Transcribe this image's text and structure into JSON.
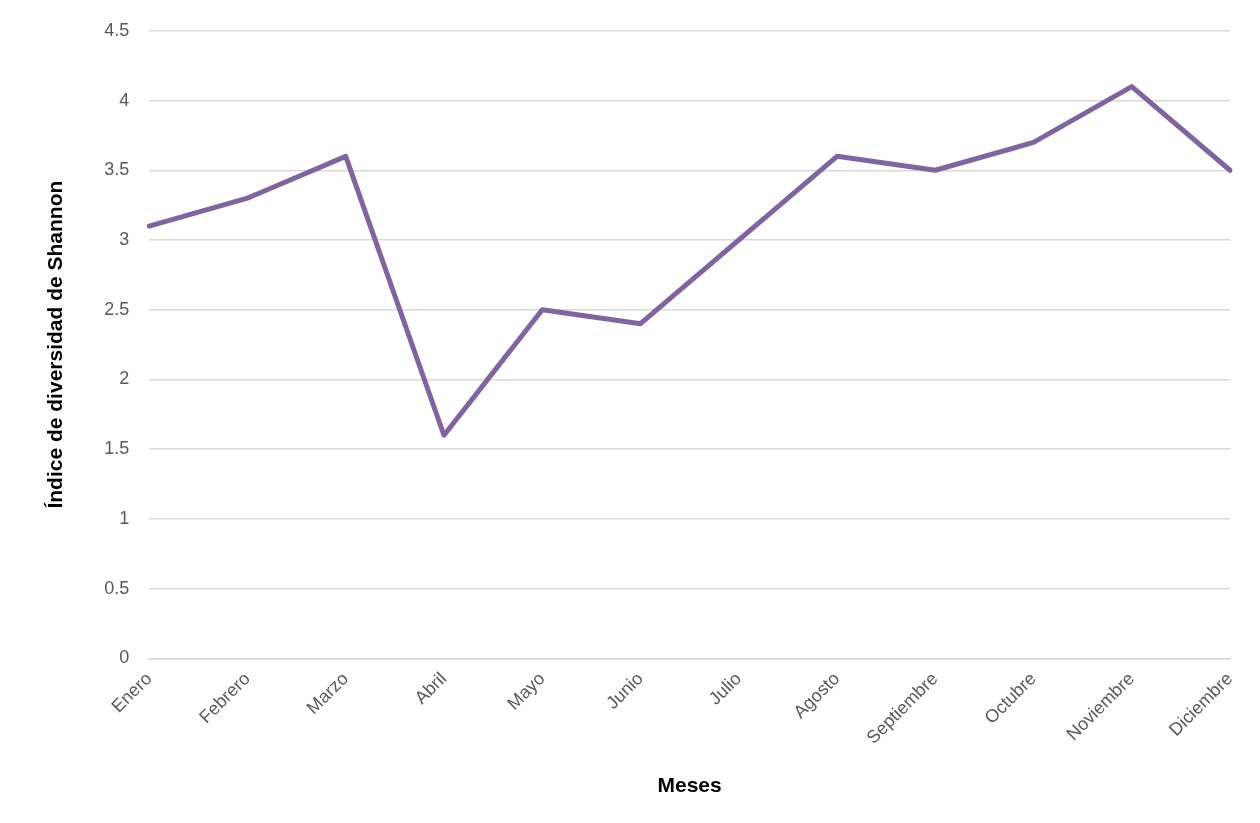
{
  "chart_data": {
    "type": "line",
    "xlabel": "Meses",
    "ylabel": "Índice de diversidad de Shannon",
    "categories": [
      "Enero",
      "Febrero",
      "Marzo",
      "Abril",
      "Mayo",
      "Junio",
      "Julio",
      "Agosto",
      "Septiembre",
      "Octubre",
      "Noviembre",
      "Diciembre"
    ],
    "series": [
      {
        "color": "#8064a2",
        "values": [
          3.1,
          3.3,
          3.6,
          1.6,
          2.5,
          2.4,
          3.0,
          3.6,
          3.5,
          3.7,
          4.1,
          3.5
        ]
      }
    ],
    "ylim": [
      0,
      4.5
    ],
    "yticks": [
      0,
      0.5,
      1,
      1.5,
      2,
      2.5,
      3,
      3.5,
      4,
      4.5
    ],
    "grid": "y",
    "legend": false,
    "marker": "none",
    "line_style": "solid"
  }
}
